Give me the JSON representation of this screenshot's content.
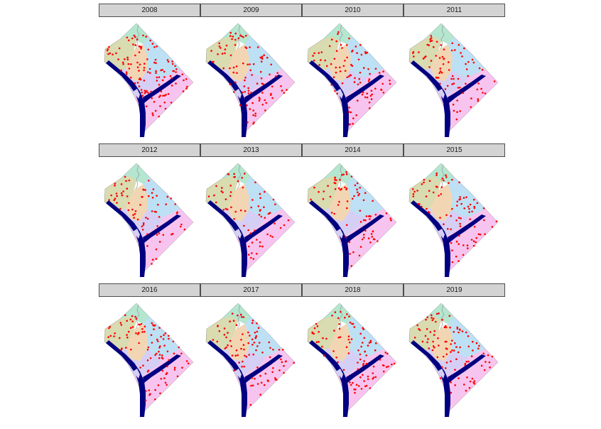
{
  "colors": {
    "strip_bg": "#d3d3d3",
    "strip_border": "#4d4d4d",
    "river": "#000080",
    "crime_points": "#ff0000",
    "region_north": "#b5e6cf",
    "region_northwest": "#d9dbb0",
    "region_central": "#f2d6b3",
    "region_east": "#bde0f5",
    "region_southeast": "#f7c4ef",
    "region_midsouth": "#d6cff5"
  },
  "icons": {
    "panel_map": "dc-choropleth-map",
    "points": "red-dot-marker"
  },
  "panels": [
    {
      "year": "2008",
      "seed": 11,
      "count": 120
    },
    {
      "year": "2009",
      "seed": 23,
      "count": 95
    },
    {
      "year": "2010",
      "seed": 37,
      "count": 92
    },
    {
      "year": "2011",
      "seed": 41,
      "count": 80
    },
    {
      "year": "2012",
      "seed": 53,
      "count": 72
    },
    {
      "year": "2013",
      "seed": 67,
      "count": 68
    },
    {
      "year": "2014",
      "seed": 71,
      "count": 78
    },
    {
      "year": "2015",
      "seed": 83,
      "count": 88
    },
    {
      "year": "2016",
      "seed": 97,
      "count": 100
    },
    {
      "year": "2017",
      "seed": 101,
      "count": 92
    },
    {
      "year": "2018",
      "seed": 113,
      "count": 95
    },
    {
      "year": "2019",
      "seed": 127,
      "count": 98
    }
  ]
}
